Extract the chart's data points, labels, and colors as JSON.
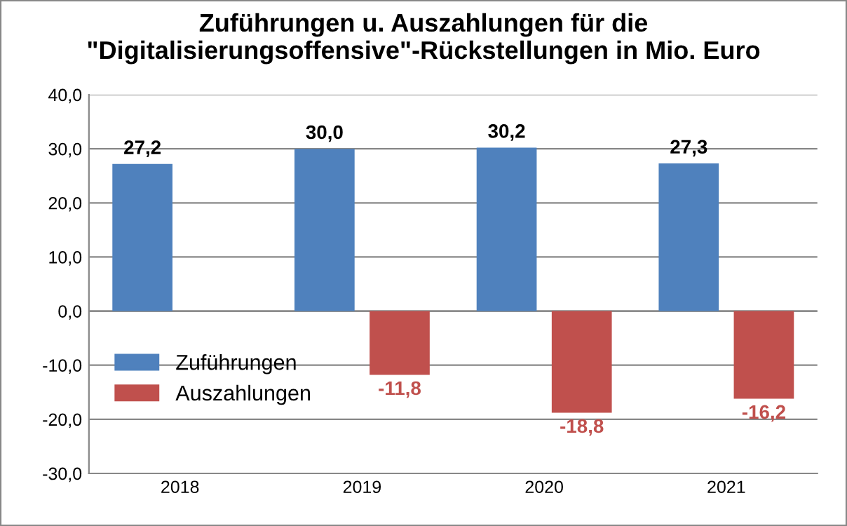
{
  "chart_data": {
    "type": "bar",
    "title": "Zuführungen u. Auszahlungen für die\n\"Digitalisierungsoffensive\"-Rückstellungen in Mio. Euro",
    "categories": [
      "2018",
      "2019",
      "2020",
      "2021"
    ],
    "series": [
      {
        "name": "Zuführungen",
        "color": "#4f81bd",
        "values": [
          27.2,
          30.0,
          30.2,
          27.3
        ],
        "value_labels": [
          "27,2",
          "30,0",
          "30,2",
          "27,3"
        ]
      },
      {
        "name": "Auszahlungen",
        "color": "#c0504d",
        "values": [
          null,
          -11.8,
          -18.8,
          -16.2
        ],
        "value_labels": [
          null,
          "-11,8",
          "-18,8",
          "-16,2"
        ]
      }
    ],
    "ylim": [
      -30,
      40
    ],
    "yticks": [
      {
        "value": -30,
        "label": "-30,0"
      },
      {
        "value": -20,
        "label": "-20,0"
      },
      {
        "value": -10,
        "label": "-10,0"
      },
      {
        "value": 0,
        "label": "0,0"
      },
      {
        "value": 10,
        "label": "10,0"
      },
      {
        "value": 20,
        "label": "20,0"
      },
      {
        "value": 30,
        "label": "30,0"
      },
      {
        "value": 40,
        "label": "40,0"
      }
    ],
    "grid": "y",
    "legend": "bottom left"
  }
}
